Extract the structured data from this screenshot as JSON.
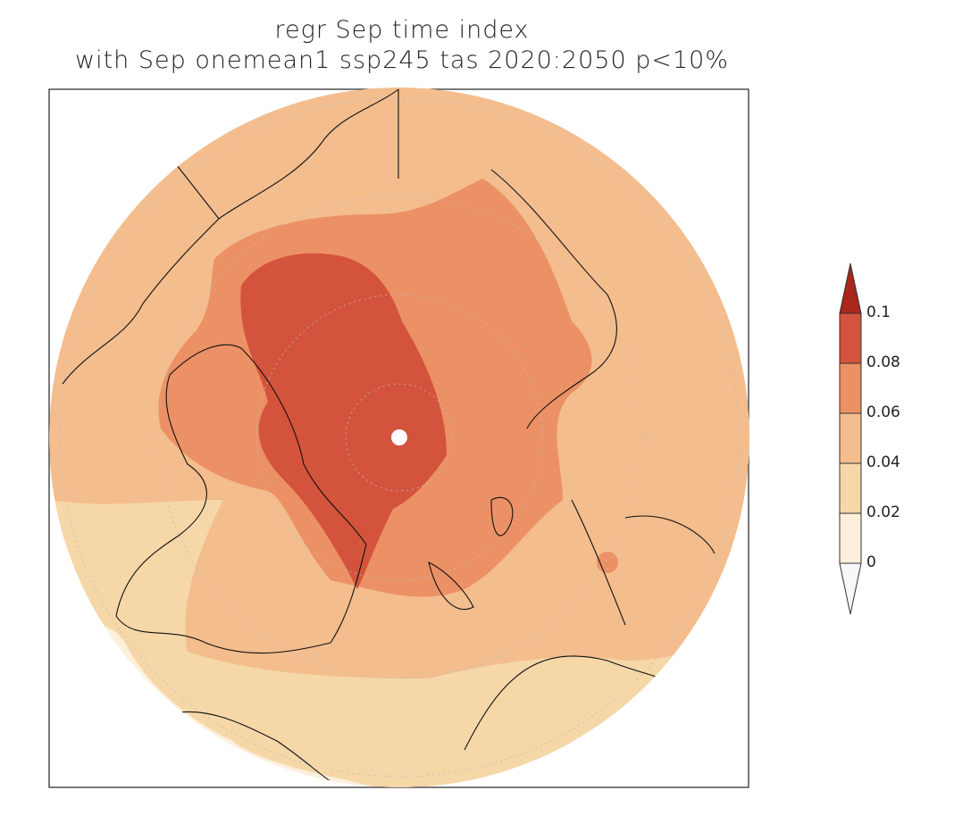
{
  "title": {
    "line1": "regr Sep time index",
    "line2": "with Sep onemean1 ssp245 tas 2020:2050 p<10%"
  },
  "projection": "north polar stereographic",
  "colorbar": {
    "labels": [
      "0.1",
      "0.08",
      "0.06",
      "0.04",
      "0.02",
      "0"
    ],
    "levels": [
      0,
      0.02,
      0.04,
      0.06,
      0.08,
      0.1
    ],
    "colors": {
      "below": "#f8f8f8",
      "0-0.02": "#fdefdc",
      "0.02-0.04": "#f6d7a8",
      "0.04-0.06": "#f3bd8e",
      "0.06-0.08": "#ec9165",
      "0.08-0.1": "#d4533c",
      "above": "#a8261c"
    }
  },
  "marker": {
    "label": "North Pole point",
    "color": "#ffffff"
  }
}
